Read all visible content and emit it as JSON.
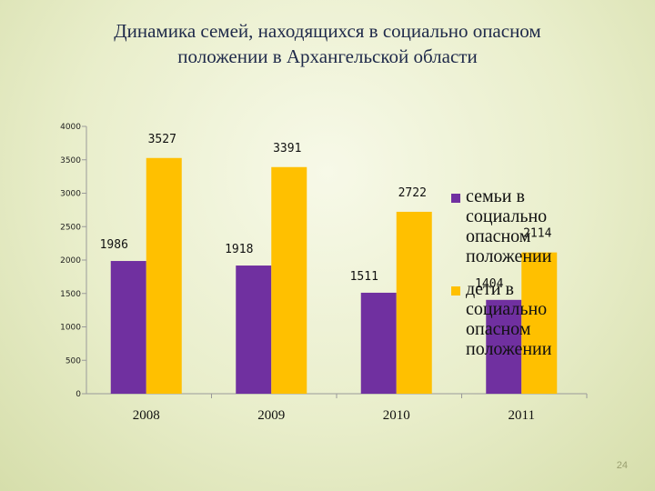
{
  "slide": {
    "title": "Динамика семей, находящихся в социально опасном\nположении в  Архангельской области",
    "page_number": "24"
  },
  "colors": {
    "series_1": "#7030a0",
    "series_2": "#ffc000",
    "axis": "#9a9a9a"
  },
  "chart_data": {
    "type": "bar",
    "title": "Динамика семей, находящихся в социально опасном положении в  Архангельской области",
    "categories": [
      "2008",
      "2009",
      "2010",
      "2011"
    ],
    "series": [
      {
        "name": "семьи в\nсоциально\nопасном\nположении",
        "values": [
          1986,
          1918,
          1511,
          1404
        ]
      },
      {
        "name": "дети в\nсоциально\nопасном\nположении",
        "values": [
          3527,
          3391,
          2722,
          2114
        ]
      }
    ],
    "y_ticks": [
      "0",
      "500",
      "1000",
      "1500",
      "2000",
      "2500",
      "3000",
      "3500",
      "4000"
    ],
    "ylim": [
      0,
      4000
    ],
    "grid": false,
    "legend_position": "right",
    "xlabel": "",
    "ylabel": ""
  }
}
